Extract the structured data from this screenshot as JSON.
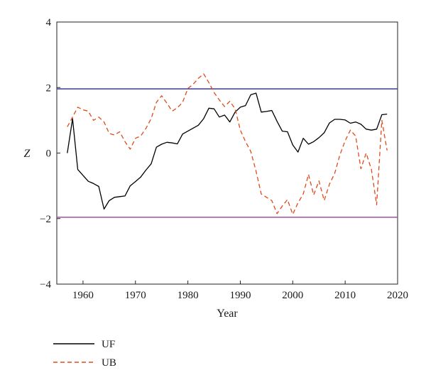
{
  "chart_data": {
    "type": "line",
    "xlabel": "Year",
    "ylabel": "Z",
    "xlim": [
      1955,
      2020
    ],
    "ylim": [
      -4,
      4
    ],
    "xticks": [
      1960,
      1970,
      1980,
      1990,
      2000,
      2010,
      2020
    ],
    "yticks": [
      -4,
      -2,
      0,
      2,
      4
    ],
    "xtick_labels": [
      "1960",
      "1970",
      "1980",
      "1990",
      "2000",
      "2010",
      "2020"
    ],
    "ytick_labels": [
      "−4",
      "−2",
      "0",
      "2",
      "4"
    ],
    "grid": false,
    "legend_position": "bottom-left",
    "reference_lines": [
      {
        "y": 1.96,
        "color": "#3a3a8c"
      },
      {
        "y": -1.96,
        "color": "#a050a0"
      }
    ],
    "series": [
      {
        "name": "UF",
        "color": "#000000",
        "style": "solid",
        "x": [
          1957,
          1958,
          1959,
          1960,
          1961,
          1962,
          1963,
          1964,
          1965,
          1966,
          1967,
          1968,
          1969,
          1970,
          1971,
          1972,
          1973,
          1974,
          1975,
          1976,
          1977,
          1978,
          1979,
          1980,
          1981,
          1982,
          1983,
          1984,
          1985,
          1986,
          1987,
          1988,
          1989,
          1990,
          1991,
          1992,
          1993,
          1994,
          1995,
          1996,
          1997,
          1998,
          1999,
          2000,
          2001,
          2002,
          2003,
          2004,
          2005,
          2006,
          2007,
          2008,
          2009,
          2010,
          2011,
          2012,
          2013,
          2014,
          2015,
          2016,
          2017,
          2018
        ],
        "y": [
          0.0,
          1.05,
          -0.5,
          -0.68,
          -0.86,
          -0.93,
          -1.02,
          -1.71,
          -1.45,
          -1.35,
          -1.33,
          -1.31,
          -1.0,
          -0.87,
          -0.73,
          -0.52,
          -0.33,
          0.18,
          0.27,
          0.33,
          0.31,
          0.28,
          0.58,
          0.67,
          0.76,
          0.85,
          1.05,
          1.37,
          1.35,
          1.1,
          1.16,
          0.95,
          1.25,
          1.4,
          1.45,
          1.78,
          1.83,
          1.25,
          1.27,
          1.3,
          0.97,
          0.67,
          0.65,
          0.25,
          0.03,
          0.45,
          0.27,
          0.35,
          0.47,
          0.62,
          0.92,
          1.03,
          1.03,
          1.01,
          0.91,
          0.95,
          0.88,
          0.73,
          0.7,
          0.73,
          1.17,
          1.19
        ]
      },
      {
        "name": "UB",
        "color": "#e04a1a",
        "style": "dashed",
        "x": [
          1957,
          1958,
          1959,
          1960,
          1961,
          1962,
          1963,
          1964,
          1965,
          1966,
          1967,
          1968,
          1969,
          1970,
          1971,
          1972,
          1973,
          1974,
          1975,
          1976,
          1977,
          1978,
          1979,
          1980,
          1981,
          1982,
          1983,
          1984,
          1985,
          1986,
          1987,
          1988,
          1989,
          1990,
          1991,
          1992,
          1993,
          1994,
          1995,
          1996,
          1997,
          1998,
          1999,
          2000,
          2001,
          2002,
          2003,
          2004,
          2005,
          2006,
          2007,
          2008,
          2009,
          2010,
          2011,
          2012,
          2013,
          2014,
          2015,
          2016,
          2017,
          2018
        ],
        "y": [
          0.8,
          1.1,
          1.4,
          1.32,
          1.28,
          1.0,
          1.1,
          0.95,
          0.6,
          0.55,
          0.65,
          0.35,
          0.12,
          0.45,
          0.52,
          0.75,
          1.05,
          1.55,
          1.75,
          1.52,
          1.28,
          1.38,
          1.55,
          1.97,
          2.1,
          2.28,
          2.42,
          2.15,
          1.85,
          1.62,
          1.42,
          1.58,
          1.35,
          0.7,
          0.35,
          0.05,
          -0.55,
          -1.25,
          -1.35,
          -1.45,
          -1.85,
          -1.62,
          -1.42,
          -1.87,
          -1.52,
          -1.25,
          -0.65,
          -1.28,
          -0.85,
          -1.45,
          -0.95,
          -0.62,
          -0.05,
          0.38,
          0.7,
          0.52,
          -0.48,
          0.0,
          -0.5,
          -1.58,
          1.0,
          0.08
        ]
      }
    ]
  }
}
